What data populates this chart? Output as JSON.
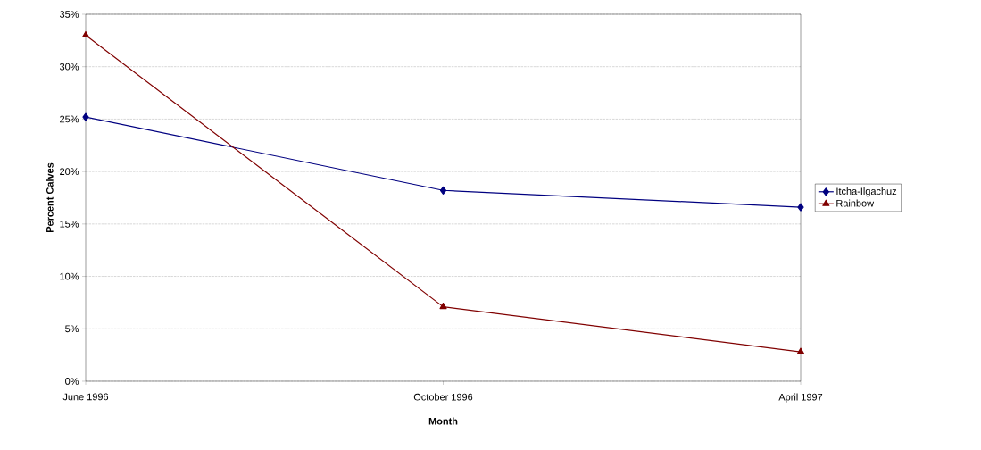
{
  "chart_data": {
    "type": "line",
    "xlabel": "Month",
    "ylabel": "Percent Calves",
    "categories": [
      "June 1996",
      "October 1996",
      "April 1997"
    ],
    "series": [
      {
        "name": "Itcha-Ilgachuz",
        "color": "#000080",
        "marker": "diamond",
        "values": [
          25.2,
          18.2,
          16.6
        ]
      },
      {
        "name": "Rainbow",
        "color": "#800000",
        "marker": "triangle",
        "values": [
          33.0,
          7.1,
          2.8
        ]
      }
    ],
    "ylim": [
      0,
      35
    ],
    "yticks": [
      {
        "value": 0,
        "label": "0%"
      },
      {
        "value": 5,
        "label": "5%"
      },
      {
        "value": 10,
        "label": "10%"
      },
      {
        "value": 15,
        "label": "15%"
      },
      {
        "value": 20,
        "label": "20%"
      },
      {
        "value": 25,
        "label": "25%"
      },
      {
        "value": 30,
        "label": "30%"
      },
      {
        "value": 35,
        "label": "35%"
      }
    ],
    "grid": "y",
    "legend": "right",
    "line_style": "solid"
  }
}
